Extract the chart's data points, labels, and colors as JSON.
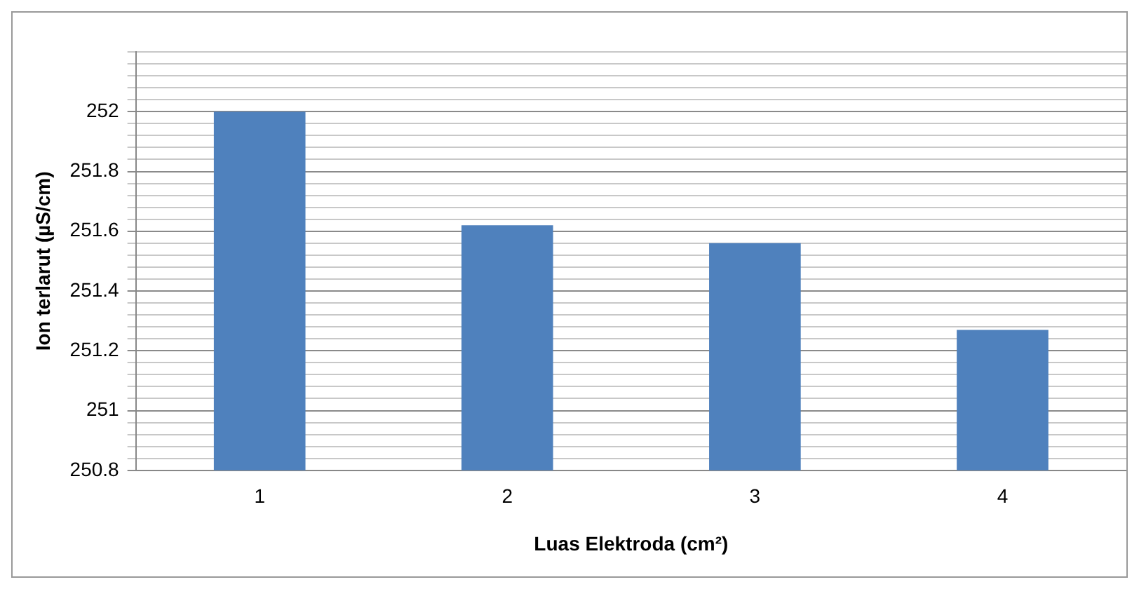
{
  "chart_data": {
    "type": "bar",
    "xlabel": "Luas Elektroda (cm²)",
    "ylabel": "Ion terlarut (µS/cm)",
    "categories": [
      "1",
      "2",
      "3",
      "4"
    ],
    "values": [
      252,
      251.62,
      251.56,
      251.27
    ],
    "color": "#4f81bd",
    "ylim": [
      250.8,
      252.2
    ],
    "yticks": [
      250.8,
      {
        "value": 250.84,
        "label": null
      },
      {
        "value": 250.88,
        "label": null
      },
      {
        "value": 250.92,
        "label": null
      },
      {
        "value": 250.96,
        "label": null
      },
      251,
      {
        "value": 251.04,
        "label": null
      },
      {
        "value": 251.08,
        "label": null
      },
      {
        "value": 251.12,
        "label": null
      },
      {
        "value": 251.16,
        "label": null
      },
      251.2,
      {
        "value": 251.24,
        "label": null
      },
      {
        "value": 251.28,
        "label": null
      },
      {
        "value": 251.32,
        "label": null
      },
      {
        "value": 251.36,
        "label": null
      },
      251.4,
      {
        "value": 251.44,
        "label": null
      },
      {
        "value": 251.48,
        "label": null
      },
      {
        "value": 251.52,
        "label": null
      },
      {
        "value": 251.56,
        "label": null
      },
      251.6,
      {
        "value": 251.64,
        "label": null
      },
      {
        "value": 251.68,
        "label": null
      },
      {
        "value": 251.72,
        "label": null
      },
      {
        "value": 251.76,
        "label": null
      },
      251.8,
      {
        "value": 251.84,
        "label": null
      },
      {
        "value": 251.88,
        "label": null
      },
      {
        "value": 251.92,
        "label": null
      },
      {
        "value": 251.96,
        "label": null
      },
      252,
      {
        "value": 252.04,
        "label": null
      },
      {
        "value": 252.08,
        "label": null
      },
      {
        "value": 252.12,
        "label": null
      },
      {
        "value": 252.16,
        "label": null
      },
      {
        "value": 252.2,
        "label": null
      }
    ],
    "grid": "y"
  }
}
